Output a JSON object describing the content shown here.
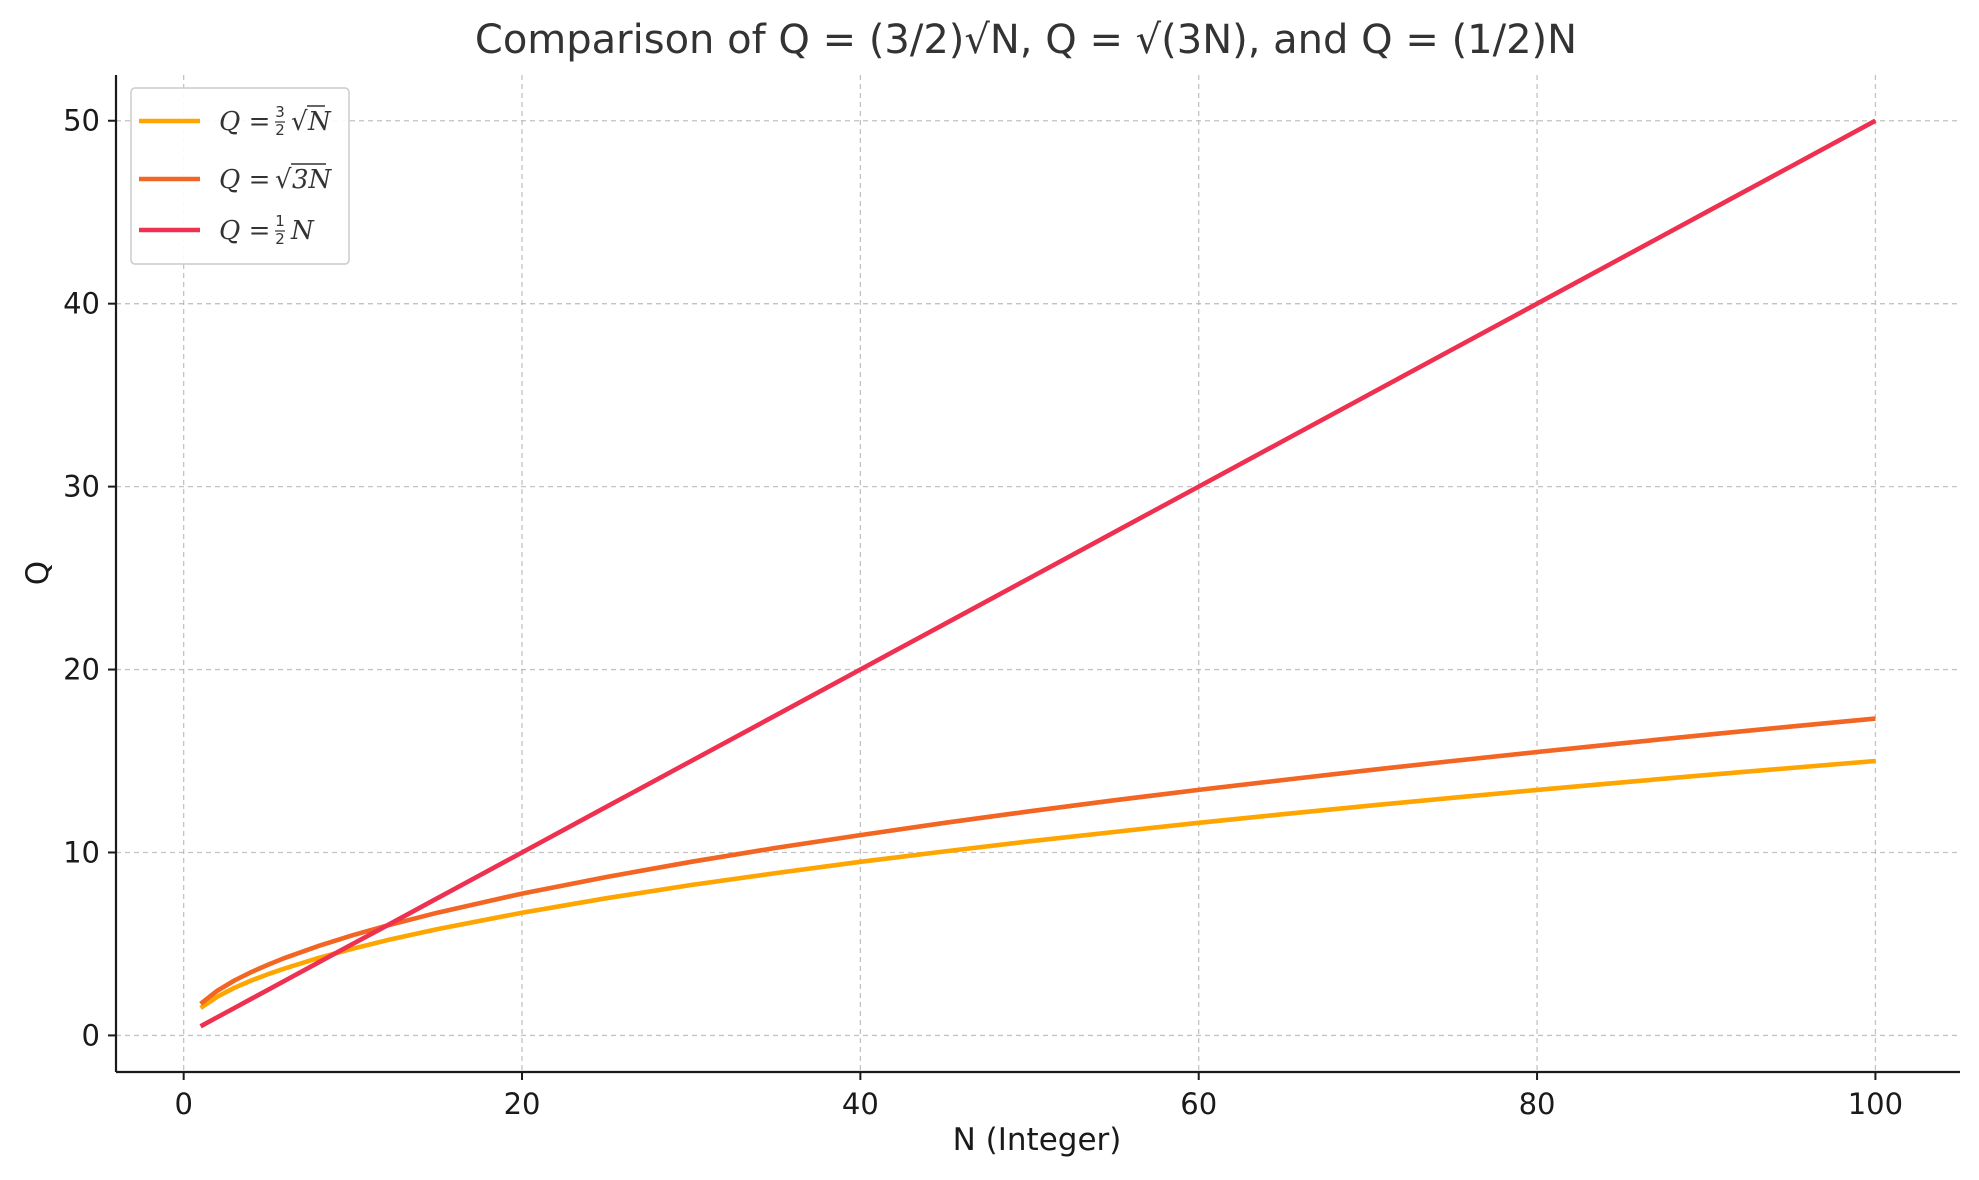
{
  "chart_data": {
    "type": "line",
    "title": "Comparison of Q = (3/2)√N, Q = √(3N), and Q = (1/2)N",
    "xlabel": "N (Integer)",
    "ylabel": "Q",
    "xlim": [
      -4,
      105
    ],
    "ylim": [
      -2,
      52.5
    ],
    "xticks": [
      0,
      20,
      40,
      60,
      80,
      100
    ],
    "yticks": [
      0,
      10,
      20,
      30,
      40,
      50
    ],
    "grid": true,
    "legend_position": "top-left",
    "x": [
      1,
      2,
      3,
      4,
      5,
      6,
      8,
      10,
      12,
      15,
      20,
      25,
      30,
      35,
      40,
      45,
      50,
      55,
      60,
      65,
      70,
      75,
      80,
      85,
      90,
      95,
      100
    ],
    "series": [
      {
        "name": "Q = (3/2)√N",
        "legend": {
          "lhs": "Q =",
          "num": "3",
          "den": "2",
          "radical": "√",
          "arg": "N"
        },
        "color": "#ffa500",
        "values": [
          1.5,
          2.12,
          2.6,
          3.0,
          3.35,
          3.67,
          4.24,
          4.74,
          5.2,
          5.81,
          6.71,
          7.5,
          8.22,
          8.87,
          9.49,
          10.06,
          10.61,
          11.12,
          11.62,
          12.09,
          12.55,
          12.99,
          13.42,
          13.83,
          14.23,
          14.62,
          15.0
        ]
      },
      {
        "name": "Q = √(3N)",
        "legend": {
          "lhs": "Q =",
          "radical": "√",
          "arg": "3N"
        },
        "color": "#f26522",
        "values": [
          1.73,
          2.45,
          3.0,
          3.46,
          3.87,
          4.24,
          4.9,
          5.48,
          6.0,
          6.71,
          7.75,
          8.66,
          9.49,
          10.25,
          10.95,
          11.62,
          12.25,
          12.85,
          13.42,
          13.96,
          14.49,
          15.0,
          15.49,
          15.97,
          16.43,
          16.88,
          17.32
        ]
      },
      {
        "name": "Q = (1/2)N",
        "legend": {
          "lhs": "Q =",
          "num": "1",
          "den": "2",
          "arg": "N"
        },
        "color": "#ee3150",
        "values": [
          0.5,
          1.0,
          1.5,
          2.0,
          2.5,
          3.0,
          4.0,
          5.0,
          6.0,
          7.5,
          10.0,
          12.5,
          15.0,
          17.5,
          20.0,
          22.5,
          25.0,
          27.5,
          30.0,
          32.5,
          35.0,
          37.5,
          40.0,
          42.5,
          45.0,
          47.5,
          50.0
        ]
      }
    ]
  }
}
